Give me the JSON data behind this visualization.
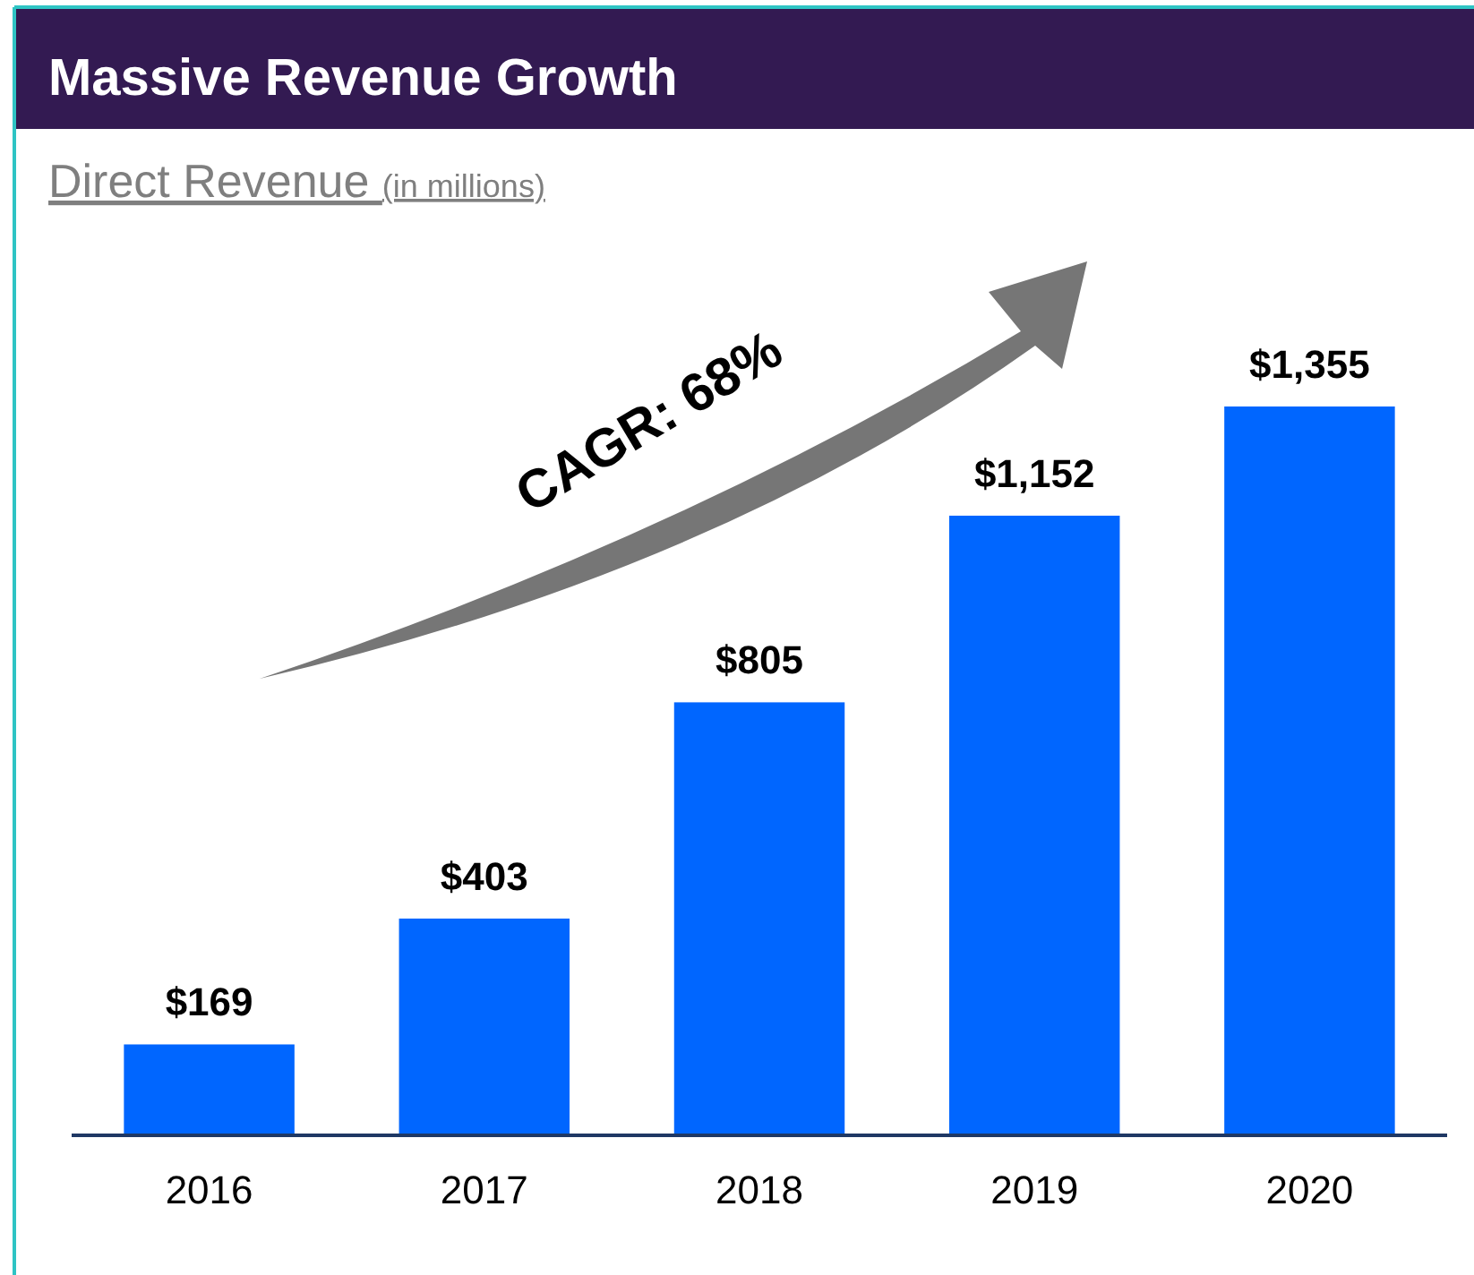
{
  "chart_data": {
    "type": "bar",
    "title": "Massive Revenue Growth",
    "subtitle": "Direct Revenue $_{(in millions)}$",
    "categories": [
      "2016",
      "2017",
      "2018",
      "2019",
      "2020"
    ],
    "values": [
      169,
      403,
      805,
      1152,
      1355
    ],
    "color": "#0066ff",
    "value_labels": [
      "$169",
      "$403",
      "$805",
      "$1,152",
      "$1,355"
    ],
    "annotations": [
      "CAGR: 68%"
    ]
  }
}
